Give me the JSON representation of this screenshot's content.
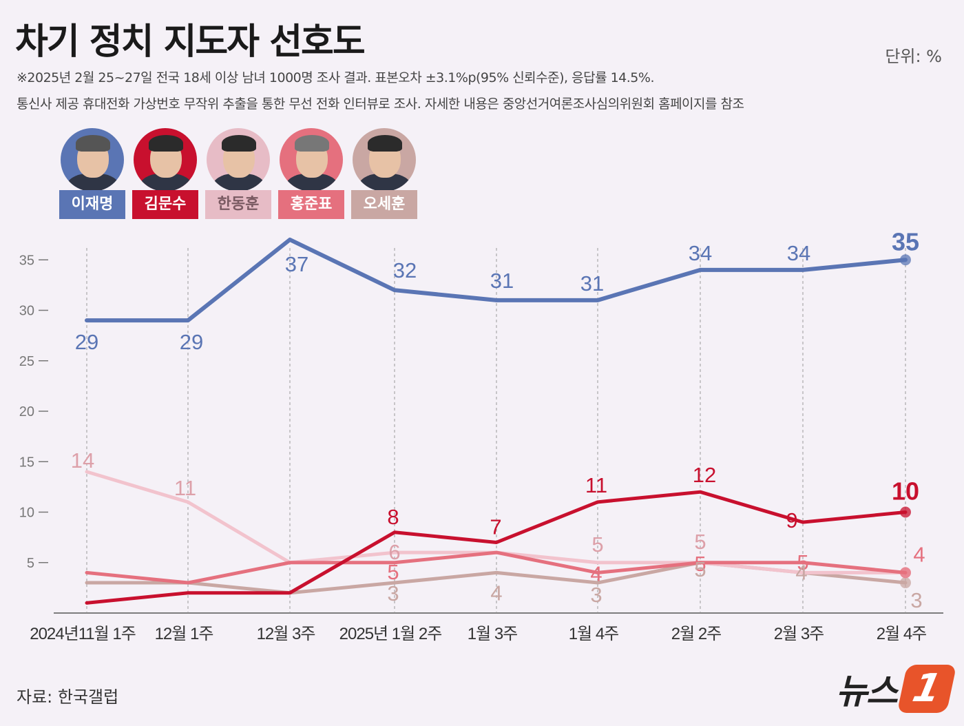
{
  "header": {
    "title": "차기 정치 지도자 선호도",
    "unit": "단위: %",
    "note1": "※2025년 2월 25~27일 전국 18세 이상 남녀 1000명 조사 결과. 표본오차 ±3.1%p(95% 신뢰수준), 응답률 14.5%.",
    "note2": "통신사 제공 휴대전화 가상번호 무작위 추출을 통한 무선 전화 인터뷰로 조사. 자세한 내용은 중앙선거여론조사심의위원회 홈페이지를 참조"
  },
  "candidates": [
    {
      "name": "이재명",
      "color": "#5a75b4"
    },
    {
      "name": "김문수",
      "color": "#c8102e"
    },
    {
      "name": "한동훈",
      "color": "#e7bcc6"
    },
    {
      "name": "홍준표",
      "color": "#e5707e"
    },
    {
      "name": "오세훈",
      "color": "#c9a7a3"
    }
  ],
  "chart_data": {
    "type": "line",
    "title": "차기 정치 지도자 선호도",
    "ylabel": "단위: %",
    "ylim": [
      0,
      37
    ],
    "yticks": [
      "5",
      "10",
      "15",
      "20",
      "25",
      "30",
      "35"
    ],
    "categories": [
      "2024년11월 1주",
      "12월 1주",
      "12월 3주",
      "2025년 1월 2주",
      "1월 3주",
      "1월 4주",
      "2월 2주",
      "2월 3주",
      "2월 4주"
    ],
    "series": [
      {
        "name": "이재명",
        "color": "#5a75b4",
        "values": [
          29,
          29,
          37,
          32,
          31,
          31,
          34,
          34,
          35
        ],
        "labels": [
          "29",
          "29",
          "37",
          "32",
          "31",
          "31",
          "34",
          "34",
          "35"
        ]
      },
      {
        "name": "김문수",
        "color": "#c8102e",
        "values": [
          1,
          2,
          2,
          8,
          7,
          11,
          12,
          9,
          10
        ],
        "labels": [
          "",
          "",
          "",
          "8",
          "7",
          "11",
          "12",
          "9",
          "10"
        ]
      },
      {
        "name": "한동훈",
        "color": "#f2c3cd",
        "values": [
          14,
          11,
          5,
          6,
          6,
          5,
          5,
          4,
          4
        ],
        "labels": [
          "14",
          "11",
          "",
          "6",
          "",
          "5",
          "5",
          "",
          ""
        ]
      },
      {
        "name": "홍준표",
        "color": "#e5707e",
        "values": [
          4,
          3,
          5,
          5,
          6,
          4,
          5,
          5,
          4
        ],
        "labels": [
          "",
          "",
          "",
          "5",
          "",
          "4",
          "5",
          "5",
          "4"
        ]
      },
      {
        "name": "오세훈",
        "color": "#c9a7a3",
        "values": [
          3,
          3,
          2,
          3,
          4,
          3,
          5,
          4,
          3
        ],
        "labels": [
          "",
          "",
          "",
          "3",
          "4",
          "3",
          "5",
          "4",
          "3"
        ]
      }
    ],
    "grid": "vertical-dashed",
    "legend": "top-left"
  },
  "footer": {
    "source": "자료: 한국갤럽",
    "logo_text": "뉴스",
    "logo_mark": "1"
  }
}
